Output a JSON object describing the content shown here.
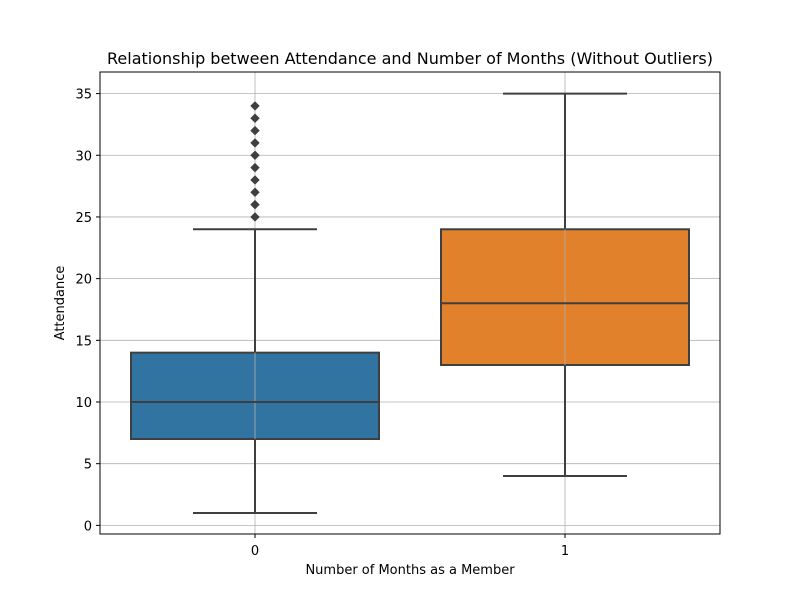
{
  "chart_data": {
    "type": "box",
    "title": "Relationship between Attendance and Number of Months (Without Outliers)",
    "xlabel": "Number of Months as a Member",
    "ylabel": "Attendance",
    "categories": [
      "0",
      "1"
    ],
    "ylim": [
      -0.7,
      36.75
    ],
    "yticks": [
      0,
      5,
      10,
      15,
      20,
      25,
      30,
      35
    ],
    "grid": true,
    "boxes": [
      {
        "category": "0",
        "whisker_low": 1,
        "q1": 7,
        "median": 10,
        "q3": 14,
        "whisker_high": 24,
        "outliers": [
          25,
          26,
          27,
          28,
          29,
          30,
          31,
          32,
          33,
          34
        ],
        "color": "#3274a1"
      },
      {
        "category": "1",
        "whisker_low": 4,
        "q1": 13,
        "median": 18,
        "q3": 24,
        "whisker_high": 35,
        "outliers": [],
        "color": "#e1812c"
      }
    ],
    "line_color": "#3f3f3f"
  }
}
